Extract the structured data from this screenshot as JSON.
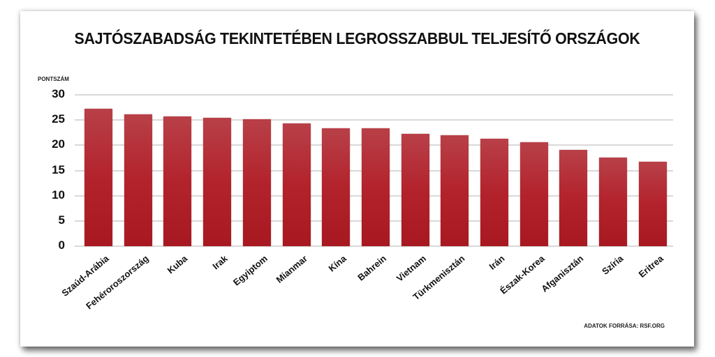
{
  "title": "SAJTÓSZABADSÁG TEKINTETÉBEN LEGROSSZABBUL TELJESÍTŐ ORSZÁGOK",
  "y_axis_label": "PONTSZÁM",
  "source": "ADATOK FORRÁSA: RSF.ORG",
  "y_ticks": [
    "30",
    "25",
    "20",
    "15",
    "10",
    "5",
    "0"
  ],
  "bar_color": "#b3232c",
  "chart_data": {
    "type": "bar",
    "title": "SAJTÓSZABADSÁG TEKINTETÉBEN LEGROSSZABBUL TELJESÍTŐ ORSZÁGOK",
    "xlabel": "",
    "ylabel": "PONTSZÁM",
    "ylim": [
      0,
      30
    ],
    "yticks": [
      0,
      5,
      10,
      15,
      20,
      25,
      30
    ],
    "grid": true,
    "legend": null,
    "annotations": [
      "ADATOK FORRÁSA: RSF.ORG"
    ],
    "categories": [
      "Szaúd-Arábia",
      "Fehéroroszország",
      "Kuba",
      "Irak",
      "Egyiptom",
      "Mianmar",
      "Kína",
      "Bahrein",
      "Vietnam",
      "Türkmenisztán",
      "Irán",
      "Észak-Korea",
      "Afganisztán",
      "Szíria",
      "Eritrea"
    ],
    "values": [
      27.2,
      26.1,
      25.7,
      25.5,
      25.1,
      24.4,
      23.3,
      23.3,
      22.3,
      22.0,
      21.3,
      20.6,
      19.1,
      17.5,
      16.7
    ]
  }
}
